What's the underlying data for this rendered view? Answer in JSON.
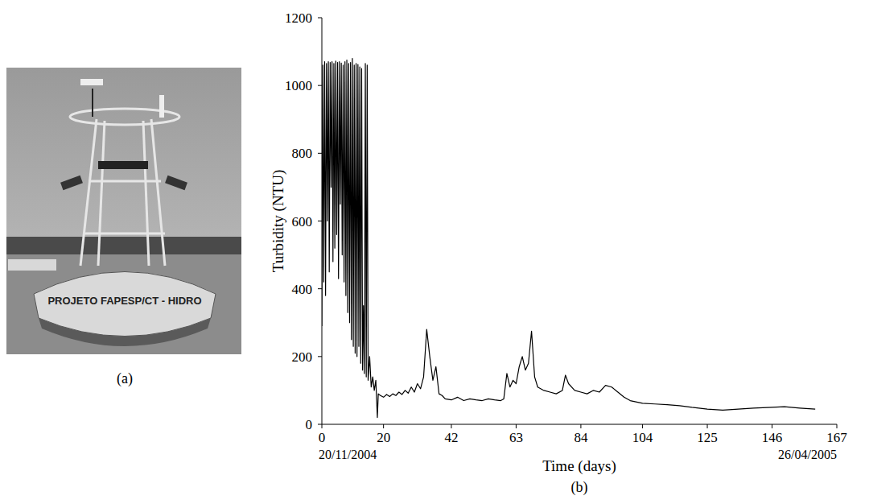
{
  "chart_data": {
    "type": "line",
    "panel_label": "(b)",
    "x_label": "Time (days)",
    "y_label": "Turbidity (NTU)",
    "color": "#000000",
    "xlim": [
      0,
      167
    ],
    "xticks": [
      0,
      20,
      42,
      63,
      84,
      104,
      125,
      146,
      167
    ],
    "ylim": [
      0,
      1200
    ],
    "yticks": [
      0,
      200,
      400,
      600,
      800,
      1000,
      1200
    ],
    "grid": false,
    "annotations": [
      {
        "x": 0,
        "text": "20/11/2004"
      },
      {
        "x": 167,
        "text": "26/04/2005"
      }
    ],
    "x": [
      0,
      0.3,
      0.6,
      0.9,
      1.2,
      1.5,
      1.8,
      2.1,
      2.4,
      2.7,
      3.0,
      3.3,
      3.6,
      3.9,
      4.2,
      4.5,
      4.8,
      5.1,
      5.4,
      5.7,
      6.0,
      6.3,
      6.6,
      6.9,
      7.2,
      7.5,
      7.8,
      8.1,
      8.4,
      8.7,
      9.0,
      9.3,
      9.6,
      9.9,
      10.2,
      10.5,
      10.8,
      11.1,
      11.4,
      11.7,
      12.0,
      12.3,
      12.6,
      12.9,
      13.2,
      13.5,
      13.8,
      14.1,
      14.4,
      14.7,
      15.0,
      15.5,
      16.0,
      16.5,
      17.0,
      17.5,
      18.0,
      18.3,
      19,
      20,
      21,
      22,
      23,
      24,
      25,
      26,
      27,
      28,
      29,
      30,
      31,
      32,
      33,
      34,
      35,
      36,
      37,
      38,
      39,
      40,
      42,
      44,
      46,
      48,
      50,
      52,
      54,
      56,
      58,
      59,
      60,
      61,
      62,
      63,
      64,
      65,
      66,
      67,
      68,
      69,
      70,
      72,
      74,
      76,
      78,
      79,
      80,
      82,
      84,
      86,
      88,
      90,
      92,
      94,
      96,
      98,
      100,
      104,
      108,
      112,
      116,
      120,
      125,
      130,
      135,
      140,
      146,
      150,
      155,
      160
    ],
    "values": [
      290,
      1060,
      420,
      1070,
      380,
      1065,
      600,
      1070,
      450,
      1068,
      700,
      1070,
      480,
      1065,
      520,
      1072,
      560,
      1068,
      430,
      1070,
      650,
      1066,
      500,
      1060,
      420,
      1070,
      380,
      1075,
      330,
      1065,
      300,
      1068,
      250,
      1080,
      230,
      1060,
      210,
      1065,
      200,
      1062,
      230,
      1055,
      180,
      1050,
      160,
      350,
      150,
      1065,
      140,
      1060,
      130,
      200,
      110,
      140,
      100,
      130,
      20,
      90,
      85,
      80,
      88,
      82,
      90,
      85,
      95,
      88,
      100,
      92,
      110,
      95,
      120,
      105,
      140,
      280,
      200,
      130,
      170,
      90,
      85,
      75,
      72,
      80,
      70,
      75,
      72,
      70,
      75,
      72,
      70,
      75,
      150,
      110,
      130,
      120,
      170,
      200,
      160,
      180,
      275,
      140,
      110,
      100,
      95,
      90,
      100,
      145,
      120,
      100,
      95,
      90,
      100,
      95,
      115,
      110,
      95,
      80,
      70,
      62,
      60,
      58,
      55,
      50,
      45,
      42,
      45,
      48,
      50,
      52,
      48,
      45
    ]
  },
  "photo": {
    "label": "(a)",
    "buoy_text": "PROJETO FAPESP/CT - HIDRO"
  }
}
